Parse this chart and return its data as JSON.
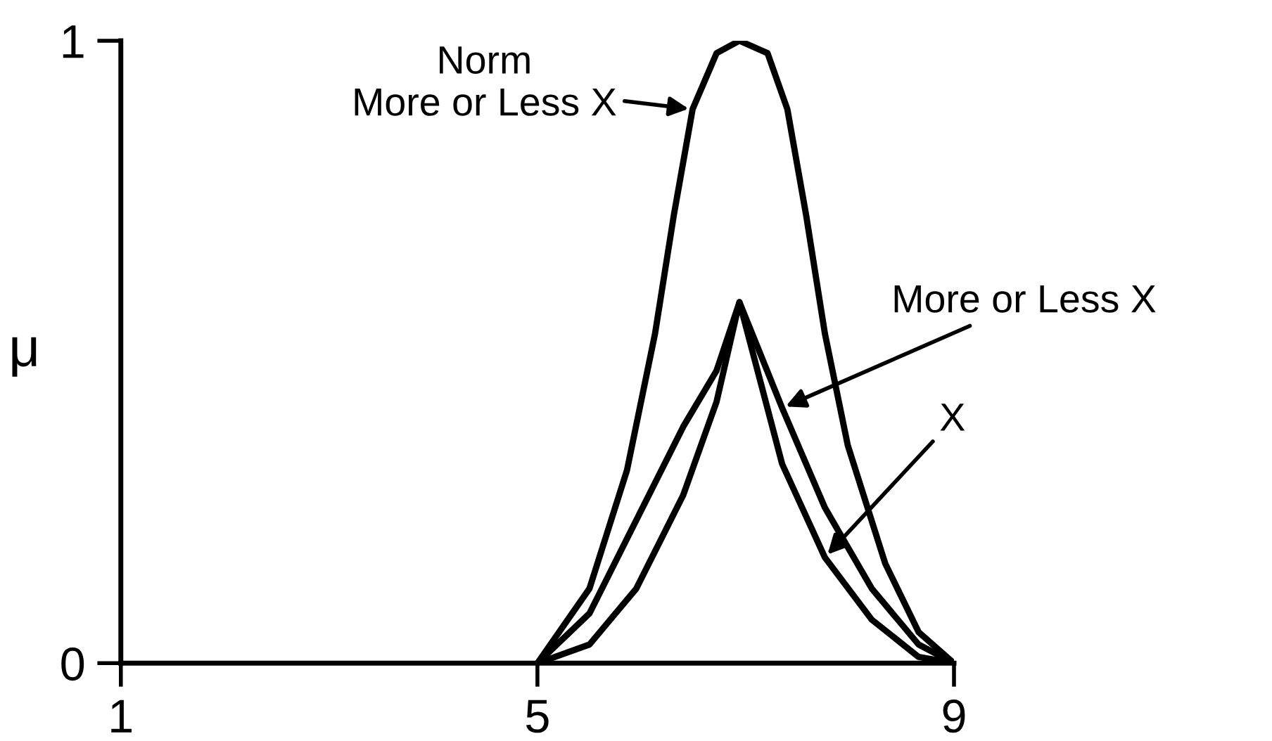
{
  "chart_data": {
    "type": "line",
    "ylabel": "μ",
    "xlim": [
      1,
      9
    ],
    "xticks": [
      1,
      5,
      9
    ],
    "ylim": [
      0,
      1
    ],
    "yticks": [
      0,
      1
    ],
    "grid": false,
    "legend": false,
    "marker": "none",
    "line_style": "solid",
    "series": [
      {
        "color": "#000000",
        "x": [
          5.0,
          5.5,
          5.86,
          6.13,
          6.31,
          6.49,
          6.72,
          6.94,
          7.21,
          7.4,
          7.58,
          7.76,
          7.98,
          8.34,
          8.66,
          9.0
        ],
        "values": [
          0,
          0.12,
          0.31,
          0.53,
          0.72,
          0.89,
          0.98,
          1.0,
          0.98,
          0.89,
          0.72,
          0.53,
          0.35,
          0.16,
          0.05,
          0
        ]
      },
      {
        "color": "#000000",
        "x": [
          5.0,
          5.5,
          5.95,
          6.4,
          6.72,
          6.94,
          7.35,
          7.76,
          8.21,
          8.66,
          9.0
        ],
        "values": [
          0,
          0.08,
          0.23,
          0.38,
          0.47,
          0.58,
          0.41,
          0.25,
          0.12,
          0.03,
          0
        ]
      },
      {
        "color": "#000000",
        "x": [
          5.0,
          5.5,
          5.95,
          6.4,
          6.72,
          6.94,
          7.35,
          7.76,
          8.21,
          8.66,
          9.0
        ],
        "values": [
          0,
          0.03,
          0.12,
          0.27,
          0.42,
          0.58,
          0.32,
          0.17,
          0.07,
          0.01,
          0
        ]
      }
    ],
    "annotations": [
      {
        "text": "Norm\nMore or Less X",
        "x": 6.49,
        "y": 0.89
      },
      {
        "text": "More or Less X",
        "x": 7.35,
        "y": 0.41
      },
      {
        "text": "X",
        "x": 7.76,
        "y": 0.17
      }
    ]
  }
}
